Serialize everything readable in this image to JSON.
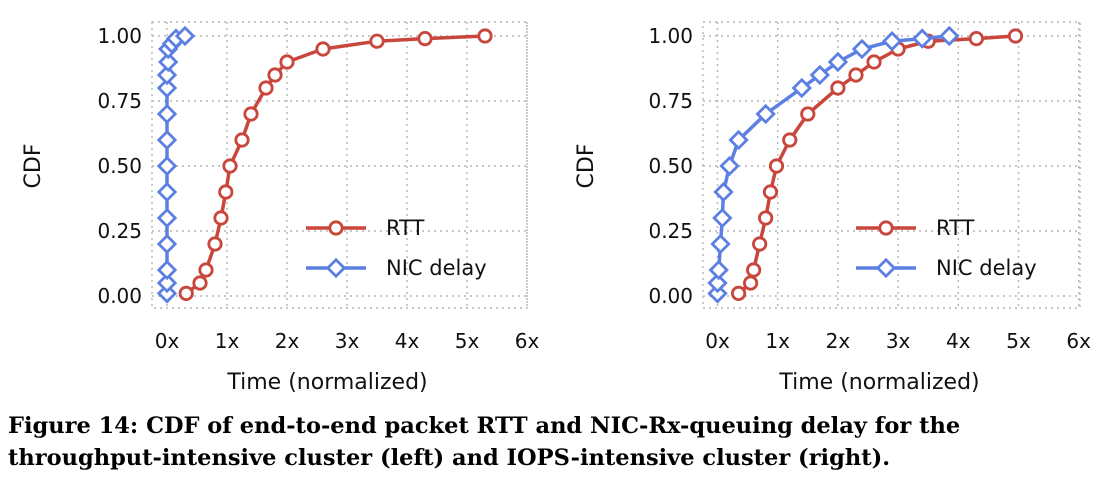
{
  "figure": {
    "caption_line1": "Figure 14: CDF of end-to-end packet RTT and NIC-Rx-queuing delay for the",
    "caption_line2": "throughput-intensive cluster (left) and IOPS-intensive cluster (right)."
  },
  "colors": {
    "rtt": "#c8463b",
    "nic": "#5b7fe3",
    "grid": "#b5b5b5"
  },
  "chart_data": [
    {
      "type": "line",
      "title": "",
      "xlabel": "Time (normalized)",
      "ylabel": "CDF",
      "xlim": [
        0,
        6
      ],
      "ylim": [
        0,
        1
      ],
      "xticks": [
        0,
        1,
        2,
        3,
        4,
        5,
        6
      ],
      "xtick_labels": [
        "0x",
        "1x",
        "2x",
        "3x",
        "4x",
        "5x",
        "6x"
      ],
      "yticks": [
        0,
        0.25,
        0.5,
        0.75,
        1.0
      ],
      "ytick_labels": [
        "0.00",
        "0.25",
        "0.50",
        "0.75",
        "1.00"
      ],
      "grid": true,
      "legend_position": "lower-right",
      "series": [
        {
          "name": "RTT",
          "marker": "circle",
          "x": [
            0.32,
            0.55,
            0.65,
            0.8,
            0.9,
            0.98,
            1.05,
            1.25,
            1.4,
            1.65,
            1.8,
            2.0,
            2.6,
            3.5,
            4.3,
            5.3
          ],
          "y": [
            0.01,
            0.05,
            0.1,
            0.2,
            0.3,
            0.4,
            0.5,
            0.6,
            0.7,
            0.8,
            0.85,
            0.9,
            0.95,
            0.98,
            0.99,
            1.0
          ]
        },
        {
          "name": "NIC delay",
          "marker": "diamond",
          "x": [
            0.0,
            0.0,
            0.0,
            0.0,
            0.0,
            0.0,
            0.0,
            0.0,
            0.0,
            0.0,
            0.0,
            0.02,
            0.02,
            0.08,
            0.15,
            0.3
          ],
          "y": [
            0.01,
            0.05,
            0.1,
            0.2,
            0.3,
            0.4,
            0.5,
            0.6,
            0.7,
            0.8,
            0.85,
            0.9,
            0.95,
            0.97,
            0.99,
            1.0
          ]
        }
      ]
    },
    {
      "type": "line",
      "title": "",
      "xlabel": "Time (normalized)",
      "ylabel": "CDF",
      "xlim": [
        0,
        6
      ],
      "ylim": [
        0,
        1
      ],
      "xticks": [
        0,
        1,
        2,
        3,
        4,
        5,
        6
      ],
      "xtick_labels": [
        "0x",
        "1x",
        "2x",
        "3x",
        "4x",
        "5x",
        "6x"
      ],
      "yticks": [
        0,
        0.25,
        0.5,
        0.75,
        1.0
      ],
      "ytick_labels": [
        "0.00",
        "0.25",
        "0.50",
        "0.75",
        "1.00"
      ],
      "grid": true,
      "legend_position": "lower-right",
      "series": [
        {
          "name": "RTT",
          "marker": "circle",
          "x": [
            0.35,
            0.55,
            0.6,
            0.7,
            0.8,
            0.88,
            0.98,
            1.2,
            1.5,
            2.0,
            2.3,
            2.6,
            3.0,
            3.5,
            4.3,
            4.95
          ],
          "y": [
            0.01,
            0.05,
            0.1,
            0.2,
            0.3,
            0.4,
            0.5,
            0.6,
            0.7,
            0.8,
            0.85,
            0.9,
            0.95,
            0.98,
            0.99,
            1.0
          ]
        },
        {
          "name": "NIC delay",
          "marker": "diamond",
          "x": [
            0.0,
            0.0,
            0.02,
            0.05,
            0.08,
            0.1,
            0.2,
            0.35,
            0.8,
            1.4,
            1.7,
            2.0,
            2.4,
            2.9,
            3.4,
            3.85
          ],
          "y": [
            0.01,
            0.05,
            0.1,
            0.2,
            0.3,
            0.4,
            0.5,
            0.6,
            0.7,
            0.8,
            0.85,
            0.9,
            0.95,
            0.98,
            0.99,
            1.0
          ]
        }
      ]
    }
  ]
}
